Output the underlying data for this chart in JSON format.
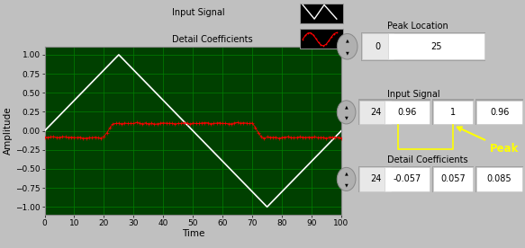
{
  "bg_color": "#c0c0c0",
  "plot_bg_color": "#004000",
  "grid_color": "#008000",
  "plot_xlim": [
    0,
    100
  ],
  "plot_ylim": [
    -1.1,
    1.1
  ],
  "yticks": [
    -1,
    -0.75,
    -0.5,
    -0.25,
    0,
    0.25,
    0.5,
    0.75,
    1
  ],
  "xticks": [
    0,
    10,
    20,
    30,
    40,
    50,
    60,
    70,
    80,
    90,
    100
  ],
  "xlabel": "Time",
  "ylabel": "Amplitude",
  "input_signal_color": "white",
  "detail_coeff_color": "red",
  "legend_input": "Input Signal",
  "legend_detail": "Detail Coefficients",
  "panel_bg": "#c0c0c0",
  "label_peak_location": "Peak Location",
  "val_peak_index": "0",
  "val_peak_location": "25",
  "label_input_signal": "Input Signal",
  "val_input_index": "24",
  "val_input_1": "0.96",
  "val_input_2": "1",
  "val_input_3": "0.96",
  "peak_annotation": "Peak",
  "label_detail_coeff": "Detail Coefficients",
  "val_detail_index": "24",
  "val_detail_1": "-0.057",
  "val_detail_2": "0.057",
  "val_detail_3": "0.085"
}
